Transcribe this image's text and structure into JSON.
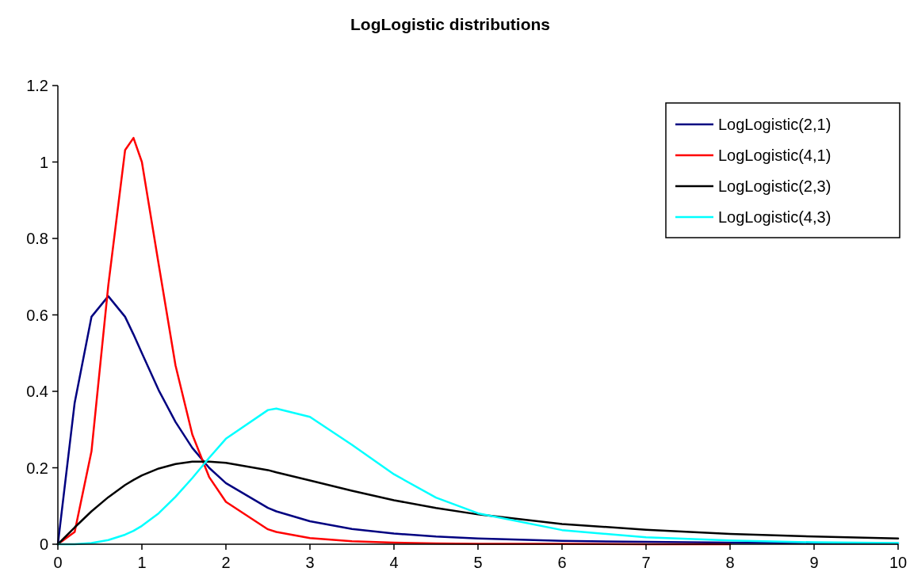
{
  "chart_data": {
    "type": "line",
    "title": "LogLogistic distributions",
    "x": [
      0,
      0.2,
      0.4,
      0.6,
      0.8,
      0.9,
      1,
      1.2,
      1.4,
      1.6,
      1.8,
      2,
      2.5,
      2.6,
      3,
      3.5,
      4,
      4.5,
      5,
      6,
      7,
      8,
      9,
      10
    ],
    "series": [
      {
        "name": "LogLogistic(2,1)",
        "color": "#000080",
        "values": [
          0,
          0.37,
          0.595,
          0.649,
          0.595,
          0.549,
          0.5,
          0.403,
          0.32,
          0.252,
          0.2,
          0.16,
          0.095,
          0.086,
          0.06,
          0.04,
          0.028,
          0.02,
          0.015,
          0.009,
          0.006,
          0.004,
          0.003,
          0.002
        ]
      },
      {
        "name": "LogLogistic(4,1)",
        "color": "#ff0000",
        "values": [
          0,
          0.032,
          0.243,
          0.677,
          1.031,
          1.063,
          1,
          0.732,
          0.468,
          0.287,
          0.176,
          0.111,
          0.039,
          0.032,
          0.016,
          0.008,
          0.004,
          0.002,
          0.001,
          0.001,
          0,
          0,
          null,
          null
        ]
      },
      {
        "name": "LogLogistic(2,3)",
        "color": "#000000",
        "values": [
          0,
          0.044,
          0.086,
          0.123,
          0.155,
          0.168,
          0.18,
          0.198,
          0.21,
          0.216,
          0.216,
          0.213,
          0.194,
          0.188,
          0.167,
          0.14,
          0.115,
          0.095,
          0.078,
          0.053,
          0.038,
          0.027,
          0.02,
          0.015
        ]
      },
      {
        "name": "LogLogistic(4,3)",
        "color": "#00ffff",
        "values": [
          0,
          0,
          0.003,
          0.011,
          0.025,
          0.035,
          0.048,
          0.081,
          0.124,
          0.173,
          0.226,
          0.276,
          0.351,
          0.355,
          0.333,
          0.26,
          0.183,
          0.122,
          0.081,
          0.037,
          0.018,
          0.01,
          0.005,
          0.003
        ]
      }
    ],
    "xlim": [
      0,
      10
    ],
    "xticks": [
      0,
      1,
      2,
      3,
      4,
      5,
      6,
      7,
      8,
      9,
      10
    ],
    "ylim": [
      0,
      1.2
    ],
    "yticks": [
      0,
      0.2,
      0.4,
      0.6,
      0.8,
      1,
      1.2
    ],
    "grid": false,
    "legend": "top right",
    "marker": "none",
    "line_style": "solid"
  }
}
